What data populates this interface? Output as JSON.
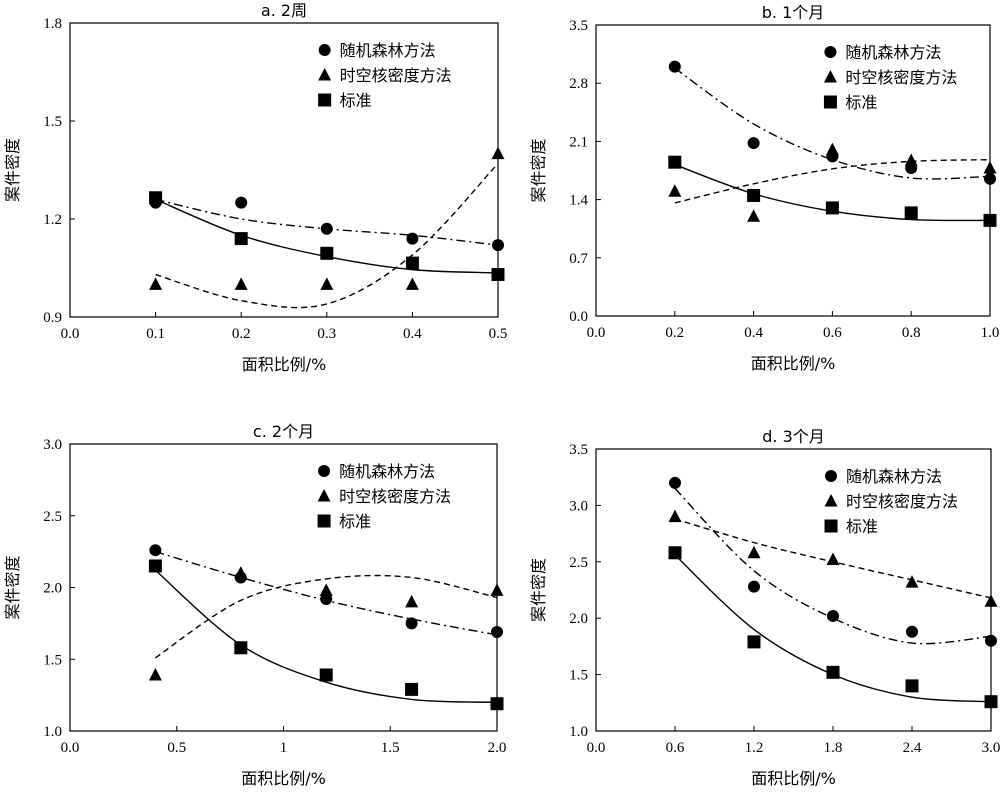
{
  "chart_data": [
    {
      "type": "scatter",
      "title": "a. 2周",
      "xlabel": "面积比例/%",
      "ylabel": "案件密度",
      "xlim": [
        0,
        0.5
      ],
      "ylim": [
        0.9,
        1.8
      ],
      "xticks": [
        "0.0",
        "0.1",
        "0.2",
        "0.3",
        "0.4",
        "0.5"
      ],
      "yticks": [
        "0.9",
        "1.2",
        "1.5",
        "1.8"
      ],
      "legend_position": "top-right",
      "series": [
        {
          "name": "随机森林方法",
          "marker": "circle",
          "line": "dash-dot",
          "x": [
            0.1,
            0.2,
            0.3,
            0.4,
            0.5
          ],
          "y": [
            1.25,
            1.25,
            1.17,
            1.14,
            1.12
          ],
          "curve": [
            1.26,
            1.2,
            1.17,
            1.15,
            1.12
          ]
        },
        {
          "name": "时空核密度方法",
          "marker": "triangle",
          "line": "dashed",
          "x": [
            0.1,
            0.2,
            0.3,
            0.4,
            0.5
          ],
          "y": [
            1.0,
            1.0,
            1.0,
            1.0,
            1.4
          ],
          "curve": [
            1.03,
            0.95,
            0.94,
            1.09,
            1.37
          ]
        },
        {
          "name": "标准",
          "marker": "square",
          "line": "solid",
          "x": [
            0.1,
            0.2,
            0.3,
            0.4,
            0.5
          ],
          "y": [
            1.265,
            1.14,
            1.095,
            1.065,
            1.03
          ],
          "curve": [
            1.26,
            1.15,
            1.085,
            1.045,
            1.035
          ]
        }
      ]
    },
    {
      "type": "scatter",
      "title": "b. 1个月",
      "xlabel": "面积比例/%",
      "ylabel": "案件密度",
      "xlim": [
        0,
        1.0
      ],
      "ylim": [
        0,
        3.5
      ],
      "xticks": [
        "0.0",
        "0.2",
        "0.4",
        "0.6",
        "0.8",
        "1.0"
      ],
      "yticks": [
        "0.0",
        "0.7",
        "1.4",
        "2.1",
        "2.8",
        "3.5"
      ],
      "legend_position": "top-right",
      "series": [
        {
          "name": "随机森林方法",
          "marker": "circle",
          "line": "dash-dot",
          "x": [
            0.2,
            0.4,
            0.6,
            0.8,
            1.0
          ],
          "y": [
            3.0,
            2.08,
            1.92,
            1.78,
            1.65
          ],
          "curve": [
            2.98,
            2.31,
            1.88,
            1.66,
            1.68
          ]
        },
        {
          "name": "时空核密度方法",
          "marker": "triangle",
          "line": "dashed",
          "x": [
            0.2,
            0.4,
            0.6,
            0.8,
            1.0
          ],
          "y": [
            1.5,
            1.2,
            2.0,
            1.87,
            1.78
          ],
          "curve": [
            1.36,
            1.59,
            1.77,
            1.86,
            1.88
          ]
        },
        {
          "name": "标准",
          "marker": "square",
          "line": "solid",
          "x": [
            0.2,
            0.4,
            0.6,
            0.8,
            1.0
          ],
          "y": [
            1.85,
            1.45,
            1.3,
            1.24,
            1.15
          ],
          "curve": [
            1.82,
            1.47,
            1.26,
            1.16,
            1.15
          ]
        }
      ]
    },
    {
      "type": "scatter",
      "title": "c. 2个月",
      "xlabel": "面积比例/%",
      "ylabel": "案件密度",
      "xlim": [
        0,
        2.0
      ],
      "ylim": [
        1.0,
        3.0
      ],
      "xticks": [
        "0.0",
        "0.5",
        "1",
        "1.5",
        "2.0"
      ],
      "yticks": [
        "1.0",
        "1.5",
        "2.0",
        "2.5",
        "3.0"
      ],
      "legend_position": "top-right",
      "series": [
        {
          "name": "随机森林方法",
          "marker": "circle",
          "line": "dash-dot",
          "x": [
            0.4,
            0.8,
            1.2,
            1.6,
            2.0
          ],
          "y": [
            2.26,
            2.07,
            1.92,
            1.75,
            1.69
          ],
          "curve": [
            2.25,
            2.07,
            1.91,
            1.78,
            1.67
          ]
        },
        {
          "name": "时空核密度方法",
          "marker": "triangle",
          "line": "dashed",
          "x": [
            0.4,
            0.8,
            1.2,
            1.6,
            2.0
          ],
          "y": [
            1.39,
            2.1,
            1.98,
            1.9,
            1.98
          ],
          "curve": [
            1.51,
            1.91,
            2.06,
            2.07,
            1.93
          ]
        },
        {
          "name": "标准",
          "marker": "square",
          "line": "solid",
          "x": [
            0.4,
            0.8,
            1.2,
            1.6,
            2.0
          ],
          "y": [
            2.15,
            1.58,
            1.39,
            1.29,
            1.19
          ],
          "curve": [
            2.12,
            1.6,
            1.34,
            1.22,
            1.2
          ]
        }
      ]
    },
    {
      "type": "scatter",
      "title": "d. 3个月",
      "xlabel": "面积比例/%",
      "ylabel": "案件密度",
      "xlim": [
        0,
        3.0
      ],
      "ylim": [
        1.0,
        3.5
      ],
      "xticks": [
        "0.0",
        "0.6",
        "1.2",
        "1.8",
        "2.4",
        "3.0"
      ],
      "yticks": [
        "1.0",
        "1.5",
        "2.0",
        "2.5",
        "3.0",
        "3.5"
      ],
      "legend_position": "top-right",
      "series": [
        {
          "name": "随机森林方法",
          "marker": "circle",
          "line": "dash-dot",
          "x": [
            0.6,
            1.2,
            1.8,
            2.4,
            3.0
          ],
          "y": [
            3.2,
            2.28,
            2.02,
            1.88,
            1.8
          ],
          "curve": [
            3.15,
            2.42,
            2.0,
            1.78,
            1.84
          ]
        },
        {
          "name": "时空核密度方法",
          "marker": "triangle",
          "line": "dashed",
          "x": [
            0.6,
            1.2,
            1.8,
            2.4,
            3.0
          ],
          "y": [
            2.9,
            2.58,
            2.52,
            2.32,
            2.15
          ],
          "curve": [
            2.88,
            2.67,
            2.5,
            2.34,
            2.18
          ]
        },
        {
          "name": "标准",
          "marker": "square",
          "line": "solid",
          "x": [
            0.6,
            1.2,
            1.8,
            2.4,
            3.0
          ],
          "y": [
            2.58,
            1.79,
            1.52,
            1.4,
            1.26
          ],
          "curve": [
            2.56,
            1.9,
            1.5,
            1.3,
            1.26
          ]
        }
      ]
    }
  ]
}
